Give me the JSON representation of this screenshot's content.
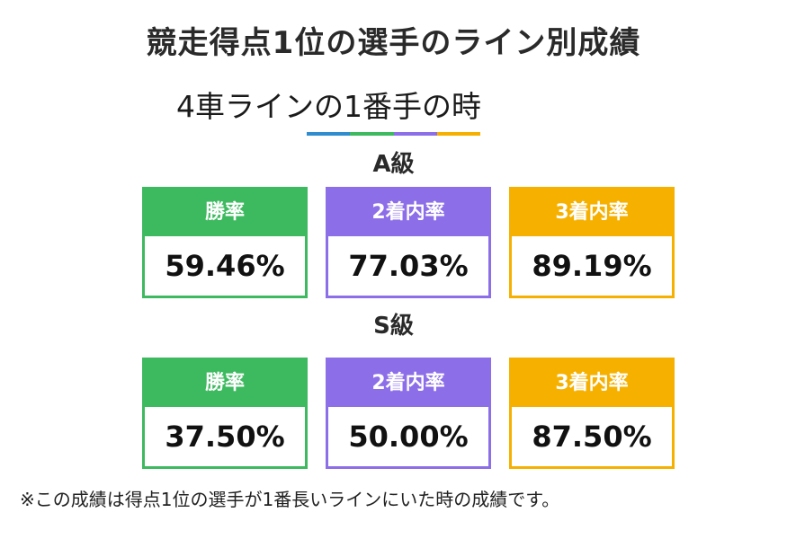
{
  "title": "競走得点1位の選手のライン別成績",
  "subtitle": "4車ラインの1番手の時",
  "divider_colors": [
    "#2f8ccf",
    "#3dba5f",
    "#8c6ee8",
    "#f6b000"
  ],
  "grades": [
    {
      "label": "A級",
      "cards": [
        {
          "label": "勝率",
          "value": "59.46%",
          "color": "#3dba5f"
        },
        {
          "label": "2着内率",
          "value": "77.03%",
          "color": "#8c6ee8"
        },
        {
          "label": "3着内率",
          "value": "89.19%",
          "color": "#f6b000"
        }
      ]
    },
    {
      "label": "S級",
      "cards": [
        {
          "label": "勝率",
          "value": "37.50%",
          "color": "#3dba5f"
        },
        {
          "label": "2着内率",
          "value": "50.00%",
          "color": "#8c6ee8"
        },
        {
          "label": "3着内率",
          "value": "87.50%",
          "color": "#f6b000"
        }
      ]
    }
  ],
  "note": "※この成績は得点1位の選手が1番長いラインにいた時の成績です。"
}
